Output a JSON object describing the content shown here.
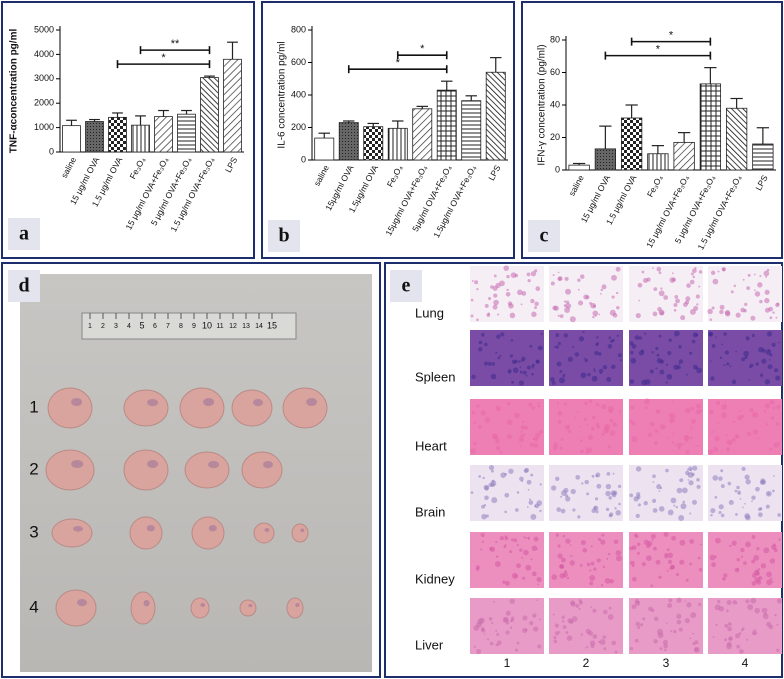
{
  "chart_data": [
    {
      "type": "bar",
      "panel": "a",
      "ylabel": "TNF-αconcentration  pg/ml",
      "categories": [
        "saline",
        "15 μg/ml OVA",
        "1.5 μg/ml OVA",
        "Fe₃O₄",
        "15 μg/ml OVA+Fe₃O₄",
        "5 μg/ml OVA+Fe₃O₄",
        "1.5 μg/ml OVA+Fe₃O₄",
        "LPS"
      ],
      "values": [
        1080,
        1250,
        1420,
        1100,
        1450,
        1550,
        3050,
        3800
      ],
      "errors": [
        220,
        80,
        180,
        380,
        250,
        150,
        60,
        700
      ],
      "patterns": [
        "plain",
        "dark",
        "check",
        "vlines",
        "diag",
        "hlines",
        "diag2",
        "diag"
      ],
      "ylim": [
        0,
        5000
      ],
      "yticks": [
        0,
        1000,
        2000,
        3000,
        4000,
        5000
      ],
      "annotations": [
        {
          "text": "*",
          "from": 2,
          "to": 6
        },
        {
          "text": "**",
          "from": 3,
          "to": 6
        }
      ]
    },
    {
      "type": "bar",
      "panel": "b",
      "ylabel": "IL-6 concentration  pg/ml",
      "categories": [
        "saline",
        "15μg/ml OVA",
        "1.5μg/ml OVA",
        "Fe₃O₄",
        "15μg/ml OVA+Fe₃O₄",
        "5μg/ml OVA+Fe₃O₄",
        "1.5μg/ml OVA+Fe₃O₄",
        "LPS"
      ],
      "values": [
        135,
        230,
        205,
        195,
        315,
        430,
        365,
        540
      ],
      "errors": [
        30,
        10,
        20,
        45,
        15,
        55,
        30,
        90
      ],
      "patterns": [
        "plain",
        "dark",
        "check",
        "vlines",
        "diag",
        "grid",
        "hlines",
        "diag2"
      ],
      "ylim": [
        0,
        800
      ],
      "yticks": [
        0,
        200,
        400,
        600,
        800
      ],
      "annotations": [
        {
          "text": "*",
          "from": 1,
          "to": 5
        },
        {
          "text": "*",
          "from": 3,
          "to": 5
        }
      ]
    },
    {
      "type": "bar",
      "panel": "c",
      "ylabel": "IFN-γ concentration (pg/ml)",
      "categories": [
        "saline",
        "15 μg/ml OVA",
        "1.5 μg/ml OVA",
        "Fe₃O₄",
        "15 μg/ml OVA+Fe₃O₄",
        "5 μg/ml OVA+Fe₃O₄",
        "1.5 μg/ml OVA+Fe₃O₄",
        "LPS"
      ],
      "values": [
        3,
        13,
        32,
        10,
        17,
        53,
        38,
        16
      ],
      "errors": [
        1,
        14,
        8,
        5,
        6,
        10,
        6,
        10
      ],
      "patterns": [
        "plain",
        "dark",
        "check",
        "vlines",
        "diag",
        "grid",
        "diag2",
        "hlines"
      ],
      "ylim": [
        0,
        80
      ],
      "yticks": [
        0,
        20,
        40,
        60,
        80
      ],
      "annotations": [
        {
          "text": "*",
          "from": 1,
          "to": 5
        },
        {
          "text": "*",
          "from": 2,
          "to": 5
        }
      ]
    }
  ],
  "photo": {
    "label": "d",
    "rows": [
      "1",
      "2",
      "3",
      "4"
    ],
    "ruler": [
      "1",
      "2",
      "3",
      "4",
      "5",
      "6",
      "7",
      "8",
      "9",
      "10",
      "11",
      "12",
      "13",
      "14",
      "15"
    ]
  },
  "histology": {
    "label": "e",
    "rows": [
      "Lung",
      "Spleen",
      "Heart",
      "Brain",
      "Kidney",
      "Liver"
    ],
    "columns": [
      "1",
      "2",
      "3",
      "4"
    ]
  }
}
